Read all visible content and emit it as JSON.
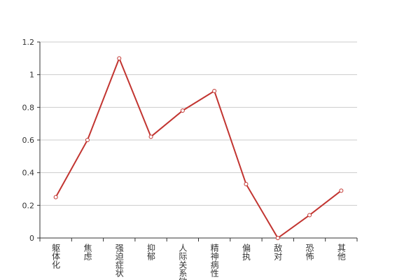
{
  "chart_data": {
    "type": "line",
    "categories": [
      "躯体化",
      "焦虑",
      "强迫症状",
      "抑郁",
      "人际关系敏感",
      "精神病性",
      "偏执",
      "敌对",
      "恐怖",
      "其他"
    ],
    "values": [
      0.25,
      0.6,
      1.1,
      0.62,
      0.78,
      0.9,
      0.33,
      0,
      0.14,
      0.29
    ],
    "color": "#c23531",
    "ylim": [
      0,
      1.2
    ],
    "yticks": [
      0,
      0.2,
      0.4,
      0.6,
      0.8,
      1,
      1.2
    ],
    "grid": true
  }
}
